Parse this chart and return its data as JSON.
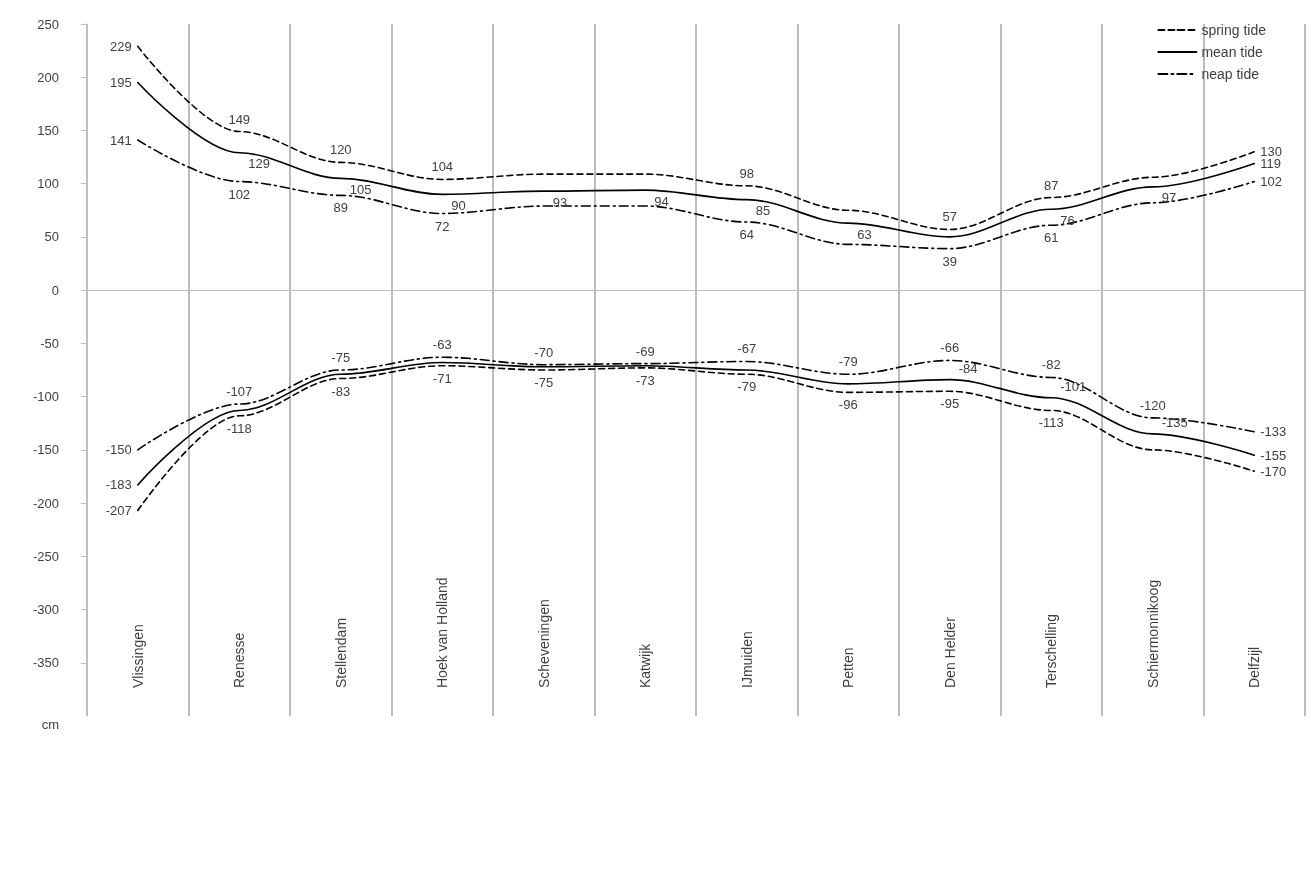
{
  "chart_data": {
    "type": "line",
    "ylabel": "cm",
    "categories": [
      "Vlissingen",
      "Renesse",
      "Stellendam",
      "Hoek van Holland",
      "Scheveningen",
      "Katwijk",
      "IJmuiden",
      "Petten",
      "Den Helder",
      "Terschelling",
      "Schiermonnikoog",
      "Delfzijl"
    ],
    "ylim": [
      -400,
      250
    ],
    "yticks": [
      -350,
      -300,
      -250,
      -200,
      -150,
      -100,
      -50,
      0,
      50,
      100,
      150,
      200,
      250
    ],
    "grid": "x",
    "legend": "top right",
    "marker": "none",
    "series": [
      {
        "name": "spring tide",
        "color": "#000000",
        "line_style": "dashed",
        "values": [
          229,
          149,
          120,
          104,
          109,
          109,
          98,
          75,
          57,
          87,
          106,
          130
        ],
        "value_labels": [
          "229",
          "149",
          "120",
          "104",
          null,
          null,
          "98",
          null,
          "57",
          "87",
          null,
          "130"
        ]
      },
      {
        "name": "mean tide",
        "color": "#000000",
        "line_style": "solid",
        "values": [
          195,
          129,
          105,
          90,
          93,
          94,
          85,
          63,
          50,
          76,
          97,
          119
        ],
        "value_labels": [
          "195",
          "129",
          "105",
          "90",
          "93",
          "94",
          "85",
          "63",
          null,
          "76",
          "97",
          "119"
        ]
      },
      {
        "name": "neap tide",
        "color": "#000000",
        "line_style": "dashdot",
        "values": [
          141,
          102,
          89,
          72,
          79,
          79,
          64,
          43,
          39,
          61,
          82,
          102
        ],
        "value_labels": [
          "141",
          "102",
          "89",
          "72",
          null,
          null,
          "64",
          null,
          "39",
          "61",
          null,
          "102"
        ]
      },
      {
        "color": "#000000",
        "line_style": "dashdot",
        "values": [
          -150,
          -107,
          -75,
          -63,
          -70,
          -69,
          -67,
          -79,
          -66,
          -82,
          -120,
          -133
        ],
        "value_labels": [
          "-150",
          "-107",
          "-75",
          "-63",
          "-70",
          "-69",
          "-67",
          "-79",
          "-66",
          "-82",
          "-120",
          "-133"
        ]
      },
      {
        "color": "#000000",
        "line_style": "solid",
        "values": [
          -183,
          -113,
          -79,
          -68,
          -72,
          -71,
          -75,
          -88,
          -84,
          -101,
          -135,
          -155
        ],
        "value_labels": [
          "-183",
          null,
          null,
          null,
          null,
          null,
          null,
          null,
          "-84",
          "-101",
          "-135",
          "-155"
        ]
      },
      {
        "color": "#000000",
        "line_style": "dashed",
        "values": [
          -207,
          -118,
          -83,
          -71,
          -75,
          -73,
          -79,
          -96,
          -95,
          -113,
          -150,
          -170
        ],
        "value_labels": [
          "-207",
          "-118",
          "-83",
          "-71",
          "-75",
          "-73",
          "-79",
          "-96",
          "-95",
          "-113",
          null,
          "-170"
        ]
      }
    ]
  }
}
